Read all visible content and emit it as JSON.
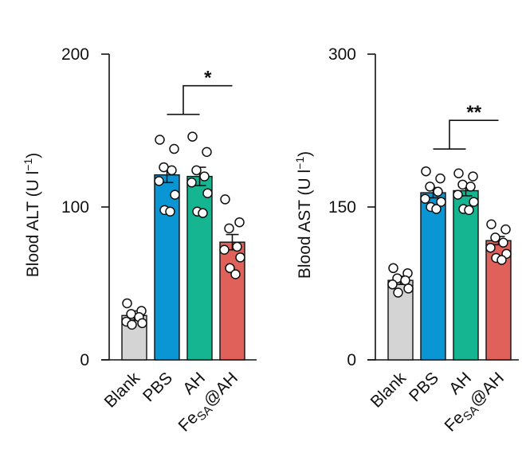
{
  "chart_data": [
    {
      "type": "bar",
      "ylabel": "Blood ALT (U l⁻¹)",
      "ylabel_parts": {
        "main": "Blood ALT (U l",
        "sup": "−1",
        "close": ")"
      },
      "ylim": [
        0,
        200
      ],
      "yticks": [
        "0",
        "100",
        "200"
      ],
      "grid": false,
      "categories": [
        "Blank",
        "PBS",
        "AH",
        "Fe_SA@AH"
      ],
      "category_labels": [
        {
          "main": "Blank"
        },
        {
          "main": "PBS"
        },
        {
          "main": "AH"
        },
        {
          "main": "Fe",
          "sub": "SA",
          "rest": "@AH"
        }
      ],
      "colors": [
        "#d4d4d4",
        "#0a96d4",
        "#15b592",
        "#e0605a"
      ],
      "values": [
        29,
        121,
        120,
        77
      ],
      "sem": [
        3,
        5,
        6,
        5
      ],
      "points": [
        [
          37,
          32,
          30,
          28,
          25,
          24,
          23
        ],
        [
          144,
          138,
          126,
          124,
          117,
          108,
          98,
          97
        ],
        [
          146,
          136,
          124,
          120,
          116,
          109,
          97,
          96
        ],
        [
          105,
          90,
          86,
          74,
          72,
          67,
          60,
          56
        ]
      ],
      "significance": {
        "label": "*",
        "groups": [
          [
            1,
            2
          ],
          [
            3
          ]
        ]
      }
    },
    {
      "type": "bar",
      "ylabel": "Blood AST (U l⁻¹)",
      "ylabel_parts": {
        "main": "Blood AST (U l",
        "sup": "−1",
        "close": ")"
      },
      "ylim": [
        0,
        300
      ],
      "yticks": [
        "0",
        "150",
        "300"
      ],
      "grid": false,
      "categories": [
        "Blank",
        "PBS",
        "AH",
        "Fe_SA@AH"
      ],
      "category_labels": [
        {
          "main": "Blank"
        },
        {
          "main": "PBS"
        },
        {
          "main": "AH"
        },
        {
          "main": "Fe",
          "sub": "SA",
          "rest": "@AH"
        }
      ],
      "colors": [
        "#d4d4d4",
        "#0a96d4",
        "#15b592",
        "#e0605a"
      ],
      "values": [
        78,
        164,
        166,
        117
      ],
      "sem": [
        4,
        5,
        5,
        4
      ],
      "points": [
        [
          90,
          85,
          80,
          78,
          74,
          70,
          66
        ],
        [
          185,
          178,
          170,
          165,
          158,
          155,
          150,
          148
        ],
        [
          183,
          180,
          172,
          170,
          162,
          155,
          148,
          147
        ],
        [
          133,
          128,
          120,
          115,
          110,
          104,
          100,
          98
        ]
      ],
      "significance": {
        "label": "**",
        "groups": [
          [
            1,
            2
          ],
          [
            3
          ]
        ]
      }
    }
  ]
}
